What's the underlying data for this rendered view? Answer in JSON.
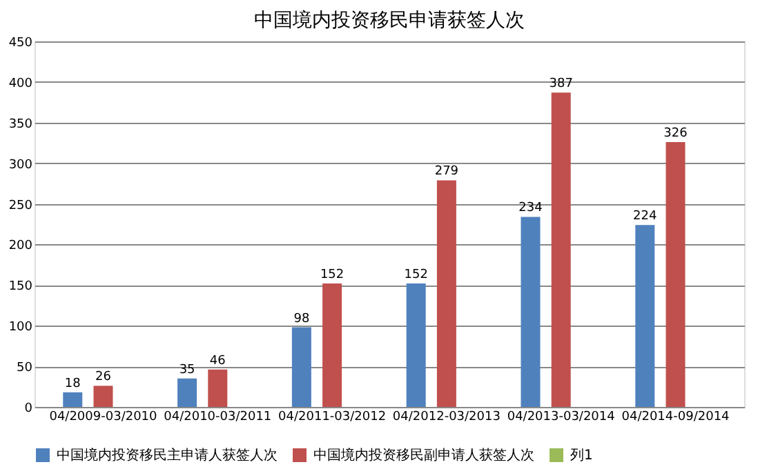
{
  "chart_data": {
    "type": "bar",
    "title": "中国境内投资移民申请获签人次",
    "categories": [
      "04/2009-03/2010",
      "04/2010-03/2011",
      "04/2011-03/2012",
      "04/2012-03/2013",
      "04/2013-03/2014",
      "04/2014-09/2014"
    ],
    "series": [
      {
        "name": "中国境内投资移民主申请人获签人次",
        "color": "#4f81bd",
        "values": [
          18,
          35,
          98,
          152,
          234,
          224
        ]
      },
      {
        "name": "中国境内投资移民副申请人获签人次",
        "color": "#c0504d",
        "values": [
          26,
          46,
          152,
          279,
          387,
          326
        ]
      },
      {
        "name": "列1",
        "color": "#9bbb59",
        "values": [
          null,
          null,
          null,
          null,
          null,
          null
        ]
      }
    ],
    "ylim": [
      0,
      450
    ],
    "yticks": [
      0,
      50,
      100,
      150,
      200,
      250,
      300,
      350,
      400,
      450
    ],
    "grid": "y",
    "legend": "bottom",
    "data_labels": true
  }
}
